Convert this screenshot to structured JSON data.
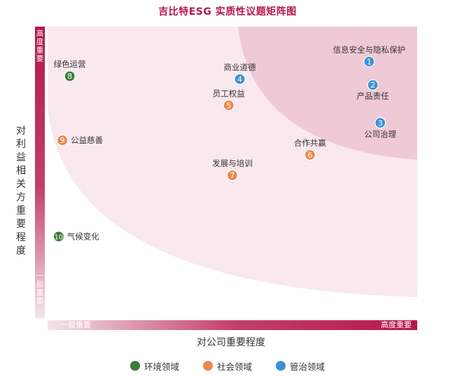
{
  "chart_data": {
    "type": "scatter",
    "title": "吉比特ESG 实质性议题矩阵图",
    "xlabel": "对公司重要程度",
    "ylabel": "对利益相关方重要程度",
    "x_axis_ends": {
      "low": "一般重要",
      "high": "高度重要"
    },
    "y_axis_ends": {
      "low": "一般重要",
      "high": "高度重要"
    },
    "xlim": [
      0,
      100
    ],
    "ylim": [
      0,
      100
    ],
    "grid": false,
    "legend_position": "bottom",
    "categories": [
      {
        "key": "env",
        "name": "环境领域",
        "color": "#3d7b37"
      },
      {
        "key": "soc",
        "name": "社会领域",
        "color": "#e98a4a"
      },
      {
        "key": "gov",
        "name": "管治领域",
        "color": "#3d91d0"
      }
    ],
    "points": [
      {
        "id": "1",
        "label": "信息安全与隐私保护",
        "category": "gov",
        "x": 87,
        "y": 88
      },
      {
        "id": "2",
        "label": "产品责任",
        "category": "gov",
        "x": 88,
        "y": 80
      },
      {
        "id": "3",
        "label": "公司治理",
        "category": "gov",
        "x": 90,
        "y": 67
      },
      {
        "id": "4",
        "label": "商业道德",
        "category": "gov",
        "x": 52,
        "y": 82
      },
      {
        "id": "5",
        "label": "员工权益",
        "category": "soc",
        "x": 49,
        "y": 73
      },
      {
        "id": "6",
        "label": "合作共赢",
        "category": "soc",
        "x": 71,
        "y": 56
      },
      {
        "id": "7",
        "label": "发展与培训",
        "category": "soc",
        "x": 50,
        "y": 49
      },
      {
        "id": "8",
        "label": "绿色运营",
        "category": "env",
        "x": 6,
        "y": 83
      },
      {
        "id": "9",
        "label": "公益慈善",
        "category": "soc",
        "x": 4,
        "y": 61
      },
      {
        "id": "10",
        "label": "气候变化",
        "category": "env",
        "x": 3,
        "y": 28
      }
    ]
  }
}
